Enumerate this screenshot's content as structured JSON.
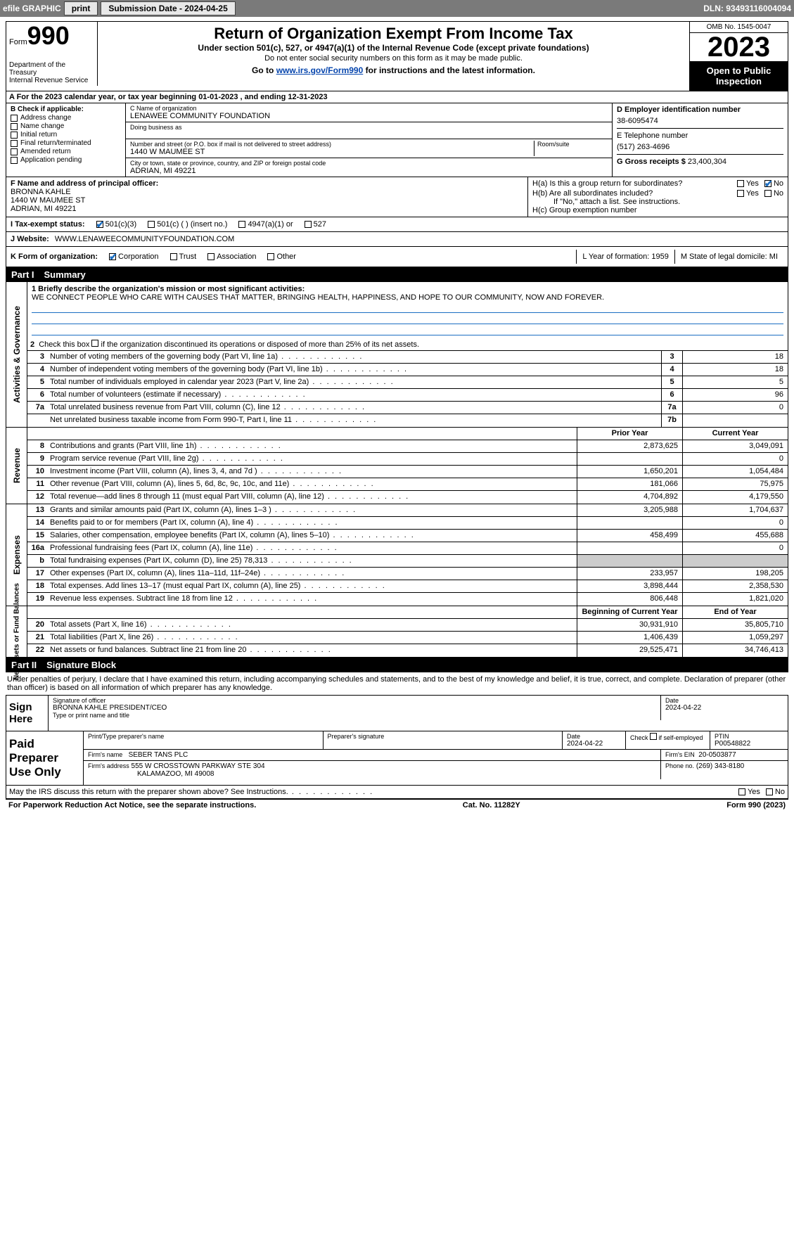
{
  "toolbar": {
    "efile_label": "efile GRAPHIC",
    "print_label": "print",
    "submission_label": "Submission Date - 2024-04-25",
    "dln_label": "DLN: 93493116004094"
  },
  "header": {
    "form_word": "Form",
    "form_number": "990",
    "dept": "Department of the Treasury\nInternal Revenue Service",
    "title": "Return of Organization Exempt From Income Tax",
    "subtitle": "Under section 501(c), 527, or 4947(a)(1) of the Internal Revenue Code (except private foundations)",
    "note1": "Do not enter social security numbers on this form as it may be made public.",
    "note2_prefix": "Go to ",
    "note2_link": "www.irs.gov/Form990",
    "note2_suffix": " for instructions and the latest information.",
    "omb": "OMB No. 1545-0047",
    "year": "2023",
    "inspect": "Open to Public Inspection"
  },
  "period": "A For the 2023 calendar year, or tax year beginning 01-01-2023    , and ending 12-31-2023",
  "box_b": {
    "label": "B Check if applicable:",
    "items": [
      "Address change",
      "Name change",
      "Initial return",
      "Final return/terminated",
      "Amended return",
      "Application pending"
    ]
  },
  "box_c": {
    "name_label": "C Name of organization",
    "name": "LENAWEE COMMUNITY FOUNDATION",
    "dba_label": "Doing business as",
    "street_label": "Number and street (or P.O. box if mail is not delivered to street address)",
    "room_label": "Room/suite",
    "street": "1440 W MAUMEE ST",
    "city_label": "City or town, state or province, country, and ZIP or foreign postal code",
    "city": "ADRIAN, MI  49221"
  },
  "box_d": {
    "label": "D Employer identification number",
    "ein": "38-6095474"
  },
  "box_e": {
    "label": "E Telephone number",
    "phone": "(517) 263-4696"
  },
  "box_g": {
    "label": "G Gross receipts $",
    "amount": "23,400,304"
  },
  "box_f": {
    "label": "F  Name and address of principal officer:",
    "name": "BRONNA KAHLE",
    "street": "1440 W MAUMEE ST",
    "city": "ADRIAN, MI  49221"
  },
  "box_h": {
    "a_label": "H(a)  Is this a group return for subordinates?",
    "b_label": "H(b)  Are all subordinates included?",
    "b_note": "If \"No,\" attach a list. See instructions.",
    "c_label": "H(c)  Group exemption number",
    "yes": "Yes",
    "no": "No"
  },
  "box_i": {
    "label": "I    Tax-exempt status:",
    "opt1": "501(c)(3)",
    "opt2": "501(c) (  ) (insert no.)",
    "opt3": "4947(a)(1) or",
    "opt4": "527"
  },
  "box_j": {
    "label": "J    Website:",
    "url": "WWW.LENAWEECOMMUNITYFOUNDATION.COM"
  },
  "box_k": {
    "label": "K Form of organization:",
    "opts": [
      "Corporation",
      "Trust",
      "Association",
      "Other"
    ]
  },
  "box_l": {
    "label": "L Year of formation: 1959"
  },
  "box_m": {
    "label": "M State of legal domicile: MI"
  },
  "part1": {
    "num": "Part I",
    "title": "Summary",
    "q1_label": "1   Briefly describe the organization's mission or most significant activities:",
    "q1_text": "WE CONNECT PEOPLE WHO CARE WITH CAUSES THAT MATTER, BRINGING HEALTH, HAPPINESS, AND HOPE TO OUR COMMUNITY, NOW AND FOREVER.",
    "q2_label": "2   Check this box       if the organization discontinued its operations or disposed of more than 25% of its net assets.",
    "gov_side": "Activities & Governance",
    "rev_side": "Revenue",
    "exp_side": "Expenses",
    "net_side": "Net Assets or Fund Balances",
    "prior_year": "Prior Year",
    "current_year": "Current Year",
    "begin_year": "Beginning of Current Year",
    "end_year": "End of Year",
    "gov_rows": [
      {
        "n": "3",
        "d": "Number of voting members of the governing body (Part VI, line 1a)",
        "box": "3",
        "v": "18"
      },
      {
        "n": "4",
        "d": "Number of independent voting members of the governing body (Part VI, line 1b)",
        "box": "4",
        "v": "18"
      },
      {
        "n": "5",
        "d": "Total number of individuals employed in calendar year 2023 (Part V, line 2a)",
        "box": "5",
        "v": "5"
      },
      {
        "n": "6",
        "d": "Total number of volunteers (estimate if necessary)",
        "box": "6",
        "v": "96"
      },
      {
        "n": "7a",
        "d": "Total unrelated business revenue from Part VIII, column (C), line 12",
        "box": "7a",
        "v": "0"
      },
      {
        "n": "",
        "d": "Net unrelated business taxable income from Form 990-T, Part I, line 11",
        "box": "7b",
        "v": ""
      }
    ],
    "rev_rows": [
      {
        "n": "8",
        "d": "Contributions and grants (Part VIII, line 1h)",
        "p": "2,873,625",
        "c": "3,049,091"
      },
      {
        "n": "9",
        "d": "Program service revenue (Part VIII, line 2g)",
        "p": "",
        "c": "0"
      },
      {
        "n": "10",
        "d": "Investment income (Part VIII, column (A), lines 3, 4, and 7d )",
        "p": "1,650,201",
        "c": "1,054,484"
      },
      {
        "n": "11",
        "d": "Other revenue (Part VIII, column (A), lines 5, 6d, 8c, 9c, 10c, and 11e)",
        "p": "181,066",
        "c": "75,975"
      },
      {
        "n": "12",
        "d": "Total revenue—add lines 8 through 11 (must equal Part VIII, column (A), line 12)",
        "p": "4,704,892",
        "c": "4,179,550"
      }
    ],
    "exp_rows": [
      {
        "n": "13",
        "d": "Grants and similar amounts paid (Part IX, column (A), lines 1–3 )",
        "p": "3,205,988",
        "c": "1,704,637"
      },
      {
        "n": "14",
        "d": "Benefits paid to or for members (Part IX, column (A), line 4)",
        "p": "",
        "c": "0"
      },
      {
        "n": "15",
        "d": "Salaries, other compensation, employee benefits (Part IX, column (A), lines 5–10)",
        "p": "458,499",
        "c": "455,688"
      },
      {
        "n": "16a",
        "d": "Professional fundraising fees (Part IX, column (A), line 11e)",
        "p": "",
        "c": "0"
      },
      {
        "n": "b",
        "d": "Total fundraising expenses (Part IX, column (D), line 25) 78,313",
        "p": "shade",
        "c": "shade"
      },
      {
        "n": "17",
        "d": "Other expenses (Part IX, column (A), lines 11a–11d, 11f–24e)",
        "p": "233,957",
        "c": "198,205"
      },
      {
        "n": "18",
        "d": "Total expenses. Add lines 13–17 (must equal Part IX, column (A), line 25)",
        "p": "3,898,444",
        "c": "2,358,530"
      },
      {
        "n": "19",
        "d": "Revenue less expenses. Subtract line 18 from line 12",
        "p": "806,448",
        "c": "1,821,020"
      }
    ],
    "net_rows": [
      {
        "n": "20",
        "d": "Total assets (Part X, line 16)",
        "p": "30,931,910",
        "c": "35,805,710"
      },
      {
        "n": "21",
        "d": "Total liabilities (Part X, line 26)",
        "p": "1,406,439",
        "c": "1,059,297"
      },
      {
        "n": "22",
        "d": "Net assets or fund balances. Subtract line 21 from line 20",
        "p": "29,525,471",
        "c": "34,746,413"
      }
    ]
  },
  "part2": {
    "num": "Part II",
    "title": "Signature Block",
    "intro": "Under penalties of perjury, I declare that I have examined this return, including accompanying schedules and statements, and to the best of my knowledge and belief, it is true, correct, and complete. Declaration of preparer (other than officer) is based on all information of which preparer has any knowledge.",
    "sign_here": "Sign Here",
    "sig_officer": "Signature of officer",
    "sig_name": "BRONNA KAHLE PRESIDENT/CEO",
    "sig_title_label": "Type or print name and title",
    "date_label": "Date",
    "date_val": "2024-04-22",
    "paid_prep": "Paid Preparer Use Only",
    "prep_name_label": "Print/Type preparer's name",
    "prep_sig_label": "Preparer's signature",
    "prep_date": "2024-04-22",
    "check_label": "Check        if self-employed",
    "ptin_label": "PTIN",
    "ptin": "P00548822",
    "firm_name_label": "Firm's name",
    "firm_name": "SEBER TANS PLC",
    "firm_ein_label": "Firm's EIN",
    "firm_ein": "20-0503877",
    "firm_addr_label": "Firm's address",
    "firm_addr1": "555 W CROSSTOWN PARKWAY STE 304",
    "firm_addr2": "KALAMAZOO, MI  49008",
    "phone_label": "Phone no.",
    "phone": "(269) 343-8180",
    "discuss": "May the IRS discuss this return with the preparer shown above? See Instructions."
  },
  "footer": {
    "left": "For Paperwork Reduction Act Notice, see the separate instructions.",
    "mid": "Cat. No. 11282Y",
    "right": "Form 990 (2023)"
  }
}
